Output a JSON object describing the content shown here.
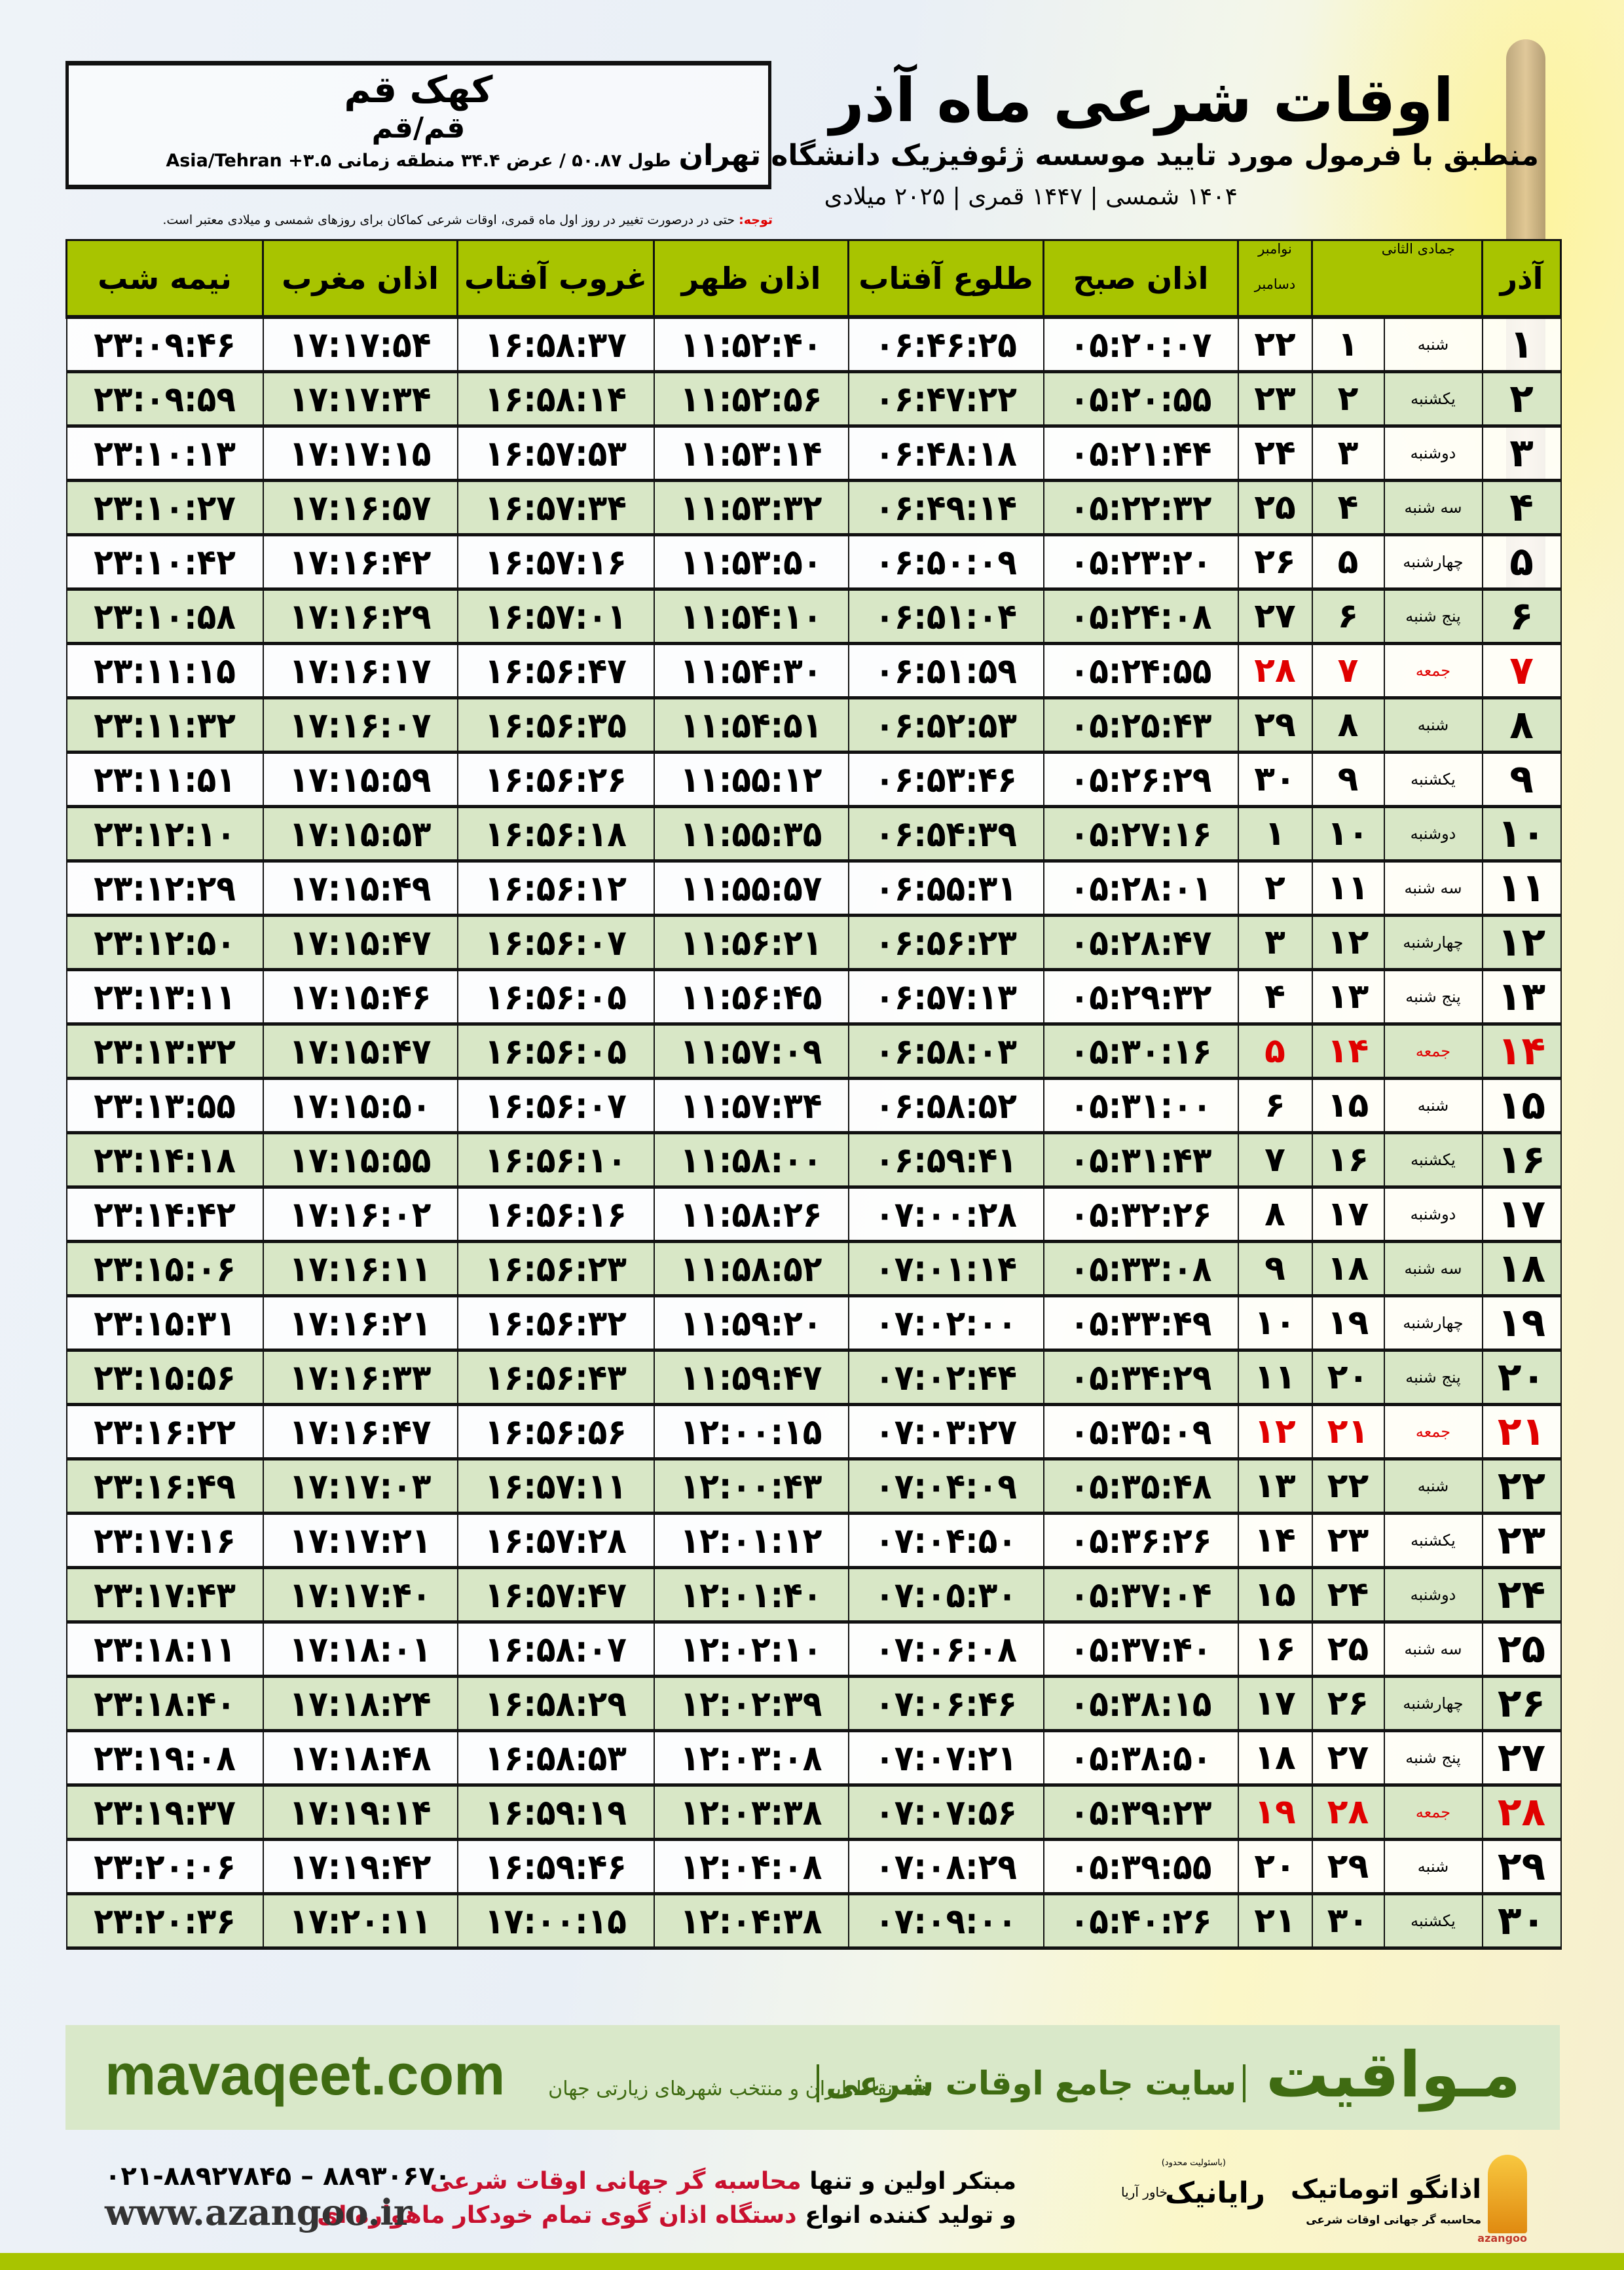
{
  "location": {
    "city": "کهک قم",
    "province": "قم/قم",
    "coords": "طول ۵۰.۸۷ / عرض ۳۴.۴ منطقه زمانی ۳.۵+ Asia/Tehran"
  },
  "header": {
    "title": "اوقات شرعی ماه آذر",
    "subtitle": "منطبق با فرمول مورد تایید موسسه ژئوفیزیک دانشگاه تهران",
    "dates": "۱۴۰۴ شمسی | ۱۴۴۷ قمری | ۲۰۲۵ میلادی"
  },
  "note": {
    "label": "توجه:",
    "text": " حتی در درصورت تغییر در روز اول ماه قمری، اوقات شرعی کماکان برای روزهای شمسی و میلادی معتبر است."
  },
  "colors": {
    "header_green": "#a8c400",
    "row_green": "#d8e7c6",
    "friday_red": "#e00000",
    "brand_green": "#3f6b12"
  },
  "table": {
    "headers": {
      "azar": "آذر",
      "jumada": "جمادی الثانی",
      "november": "نوامبر",
      "december": "دسامبر",
      "fajr": "اذان صبح",
      "sunrise": "طلوع آفتاب",
      "dhuhr": "اذان ظهر",
      "sunset": "غروب آفتاب",
      "maghrib": "اذان مغرب",
      "midnight": "نیمه شب"
    },
    "rows": [
      {
        "day": "۱",
        "weekday": "شنبه",
        "jumada": "۱",
        "greg": "۲۲",
        "fajr": "۰۵:۲۰:۰۷",
        "sunrise": "۰۶:۴۶:۲۵",
        "dhuhr": "۱۱:۵۲:۴۰",
        "sunset": "۱۶:۵۸:۳۷",
        "maghrib": "۱۷:۱۷:۵۴",
        "midnight": "۲۳:۰۹:۴۶"
      },
      {
        "day": "۲",
        "weekday": "یکشنبه",
        "jumada": "۲",
        "greg": "۲۳",
        "fajr": "۰۵:۲۰:۵۵",
        "sunrise": "۰۶:۴۷:۲۲",
        "dhuhr": "۱۱:۵۲:۵۶",
        "sunset": "۱۶:۵۸:۱۴",
        "maghrib": "۱۷:۱۷:۳۴",
        "midnight": "۲۳:۰۹:۵۹"
      },
      {
        "day": "۳",
        "weekday": "دوشنبه",
        "jumada": "۳",
        "greg": "۲۴",
        "fajr": "۰۵:۲۱:۴۴",
        "sunrise": "۰۶:۴۸:۱۸",
        "dhuhr": "۱۱:۵۳:۱۴",
        "sunset": "۱۶:۵۷:۵۳",
        "maghrib": "۱۷:۱۷:۱۵",
        "midnight": "۲۳:۱۰:۱۳"
      },
      {
        "day": "۴",
        "weekday": "سه شنبه",
        "jumada": "۴",
        "greg": "۲۵",
        "fajr": "۰۵:۲۲:۳۲",
        "sunrise": "۰۶:۴۹:۱۴",
        "dhuhr": "۱۱:۵۳:۳۲",
        "sunset": "۱۶:۵۷:۳۴",
        "maghrib": "۱۷:۱۶:۵۷",
        "midnight": "۲۳:۱۰:۲۷"
      },
      {
        "day": "۵",
        "weekday": "چهارشنبه",
        "jumada": "۵",
        "greg": "۲۶",
        "fajr": "۰۵:۲۳:۲۰",
        "sunrise": "۰۶:۵۰:۰۹",
        "dhuhr": "۱۱:۵۳:۵۰",
        "sunset": "۱۶:۵۷:۱۶",
        "maghrib": "۱۷:۱۶:۴۲",
        "midnight": "۲۳:۱۰:۴۲"
      },
      {
        "day": "۶",
        "weekday": "پنج شنبه",
        "jumada": "۶",
        "greg": "۲۷",
        "fajr": "۰۵:۲۴:۰۸",
        "sunrise": "۰۶:۵۱:۰۴",
        "dhuhr": "۱۱:۵۴:۱۰",
        "sunset": "۱۶:۵۷:۰۱",
        "maghrib": "۱۷:۱۶:۲۹",
        "midnight": "۲۳:۱۰:۵۸"
      },
      {
        "day": "۷",
        "weekday": "جمعه",
        "jumada": "۷",
        "greg": "۲۸",
        "fajr": "۰۵:۲۴:۵۵",
        "sunrise": "۰۶:۵۱:۵۹",
        "dhuhr": "۱۱:۵۴:۳۰",
        "sunset": "۱۶:۵۶:۴۷",
        "maghrib": "۱۷:۱۶:۱۷",
        "midnight": "۲۳:۱۱:۱۵"
      },
      {
        "day": "۸",
        "weekday": "شنبه",
        "jumada": "۸",
        "greg": "۲۹",
        "fajr": "۰۵:۲۵:۴۳",
        "sunrise": "۰۶:۵۲:۵۳",
        "dhuhr": "۱۱:۵۴:۵۱",
        "sunset": "۱۶:۵۶:۳۵",
        "maghrib": "۱۷:۱۶:۰۷",
        "midnight": "۲۳:۱۱:۳۲"
      },
      {
        "day": "۹",
        "weekday": "یکشنبه",
        "jumada": "۹",
        "greg": "۳۰",
        "fajr": "۰۵:۲۶:۲۹",
        "sunrise": "۰۶:۵۳:۴۶",
        "dhuhr": "۱۱:۵۵:۱۲",
        "sunset": "۱۶:۵۶:۲۶",
        "maghrib": "۱۷:۱۵:۵۹",
        "midnight": "۲۳:۱۱:۵۱"
      },
      {
        "day": "۱۰",
        "weekday": "دوشنبه",
        "jumada": "۱۰",
        "greg": "۱",
        "fajr": "۰۵:۲۷:۱۶",
        "sunrise": "۰۶:۵۴:۳۹",
        "dhuhr": "۱۱:۵۵:۳۵",
        "sunset": "۱۶:۵۶:۱۸",
        "maghrib": "۱۷:۱۵:۵۳",
        "midnight": "۲۳:۱۲:۱۰"
      },
      {
        "day": "۱۱",
        "weekday": "سه شنبه",
        "jumada": "۱۱",
        "greg": "۲",
        "fajr": "۰۵:۲۸:۰۱",
        "sunrise": "۰۶:۵۵:۳۱",
        "dhuhr": "۱۱:۵۵:۵۷",
        "sunset": "۱۶:۵۶:۱۲",
        "maghrib": "۱۷:۱۵:۴۹",
        "midnight": "۲۳:۱۲:۲۹"
      },
      {
        "day": "۱۲",
        "weekday": "چهارشنبه",
        "jumada": "۱۲",
        "greg": "۳",
        "fajr": "۰۵:۲۸:۴۷",
        "sunrise": "۰۶:۵۶:۲۳",
        "dhuhr": "۱۱:۵۶:۲۱",
        "sunset": "۱۶:۵۶:۰۷",
        "maghrib": "۱۷:۱۵:۴۷",
        "midnight": "۲۳:۱۲:۵۰"
      },
      {
        "day": "۱۳",
        "weekday": "پنج شنبه",
        "jumada": "۱۳",
        "greg": "۴",
        "fajr": "۰۵:۲۹:۳۲",
        "sunrise": "۰۶:۵۷:۱۳",
        "dhuhr": "۱۱:۵۶:۴۵",
        "sunset": "۱۶:۵۶:۰۵",
        "maghrib": "۱۷:۱۵:۴۶",
        "midnight": "۲۳:۱۳:۱۱"
      },
      {
        "day": "۱۴",
        "weekday": "جمعه",
        "jumada": "۱۴",
        "greg": "۵",
        "fajr": "۰۵:۳۰:۱۶",
        "sunrise": "۰۶:۵۸:۰۳",
        "dhuhr": "۱۱:۵۷:۰۹",
        "sunset": "۱۶:۵۶:۰۵",
        "maghrib": "۱۷:۱۵:۴۷",
        "midnight": "۲۳:۱۳:۳۲"
      },
      {
        "day": "۱۵",
        "weekday": "شنبه",
        "jumada": "۱۵",
        "greg": "۶",
        "fajr": "۰۵:۳۱:۰۰",
        "sunrise": "۰۶:۵۸:۵۲",
        "dhuhr": "۱۱:۵۷:۳۴",
        "sunset": "۱۶:۵۶:۰۷",
        "maghrib": "۱۷:۱۵:۵۰",
        "midnight": "۲۳:۱۳:۵۵"
      },
      {
        "day": "۱۶",
        "weekday": "یکشنبه",
        "jumada": "۱۶",
        "greg": "۷",
        "fajr": "۰۵:۳۱:۴۳",
        "sunrise": "۰۶:۵۹:۴۱",
        "dhuhr": "۱۱:۵۸:۰۰",
        "sunset": "۱۶:۵۶:۱۰",
        "maghrib": "۱۷:۱۵:۵۵",
        "midnight": "۲۳:۱۴:۱۸"
      },
      {
        "day": "۱۷",
        "weekday": "دوشنبه",
        "jumada": "۱۷",
        "greg": "۸",
        "fajr": "۰۵:۳۲:۲۶",
        "sunrise": "۰۷:۰۰:۲۸",
        "dhuhr": "۱۱:۵۸:۲۶",
        "sunset": "۱۶:۵۶:۱۶",
        "maghrib": "۱۷:۱۶:۰۲",
        "midnight": "۲۳:۱۴:۴۲"
      },
      {
        "day": "۱۸",
        "weekday": "سه شنبه",
        "jumada": "۱۸",
        "greg": "۹",
        "fajr": "۰۵:۳۳:۰۸",
        "sunrise": "۰۷:۰۱:۱۴",
        "dhuhr": "۱۱:۵۸:۵۲",
        "sunset": "۱۶:۵۶:۲۳",
        "maghrib": "۱۷:۱۶:۱۱",
        "midnight": "۲۳:۱۵:۰۶"
      },
      {
        "day": "۱۹",
        "weekday": "چهارشنبه",
        "jumada": "۱۹",
        "greg": "۱۰",
        "fajr": "۰۵:۳۳:۴۹",
        "sunrise": "۰۷:۰۲:۰۰",
        "dhuhr": "۱۱:۵۹:۲۰",
        "sunset": "۱۶:۵۶:۳۲",
        "maghrib": "۱۷:۱۶:۲۱",
        "midnight": "۲۳:۱۵:۳۱"
      },
      {
        "day": "۲۰",
        "weekday": "پنج شنبه",
        "jumada": "۲۰",
        "greg": "۱۱",
        "fajr": "۰۵:۳۴:۲۹",
        "sunrise": "۰۷:۰۲:۴۴",
        "dhuhr": "۱۱:۵۹:۴۷",
        "sunset": "۱۶:۵۶:۴۳",
        "maghrib": "۱۷:۱۶:۳۳",
        "midnight": "۲۳:۱۵:۵۶"
      },
      {
        "day": "۲۱",
        "weekday": "جمعه",
        "jumada": "۲۱",
        "greg": "۱۲",
        "fajr": "۰۵:۳۵:۰۹",
        "sunrise": "۰۷:۰۳:۲۷",
        "dhuhr": "۱۲:۰۰:۱۵",
        "sunset": "۱۶:۵۶:۵۶",
        "maghrib": "۱۷:۱۶:۴۷",
        "midnight": "۲۳:۱۶:۲۲"
      },
      {
        "day": "۲۲",
        "weekday": "شنبه",
        "jumada": "۲۲",
        "greg": "۱۳",
        "fajr": "۰۵:۳۵:۴۸",
        "sunrise": "۰۷:۰۴:۰۹",
        "dhuhr": "۱۲:۰۰:۴۳",
        "sunset": "۱۶:۵۷:۱۱",
        "maghrib": "۱۷:۱۷:۰۳",
        "midnight": "۲۳:۱۶:۴۹"
      },
      {
        "day": "۲۳",
        "weekday": "یکشنبه",
        "jumada": "۲۳",
        "greg": "۱۴",
        "fajr": "۰۵:۳۶:۲۶",
        "sunrise": "۰۷:۰۴:۵۰",
        "dhuhr": "۱۲:۰۱:۱۲",
        "sunset": "۱۶:۵۷:۲۸",
        "maghrib": "۱۷:۱۷:۲۱",
        "midnight": "۲۳:۱۷:۱۶"
      },
      {
        "day": "۲۴",
        "weekday": "دوشنبه",
        "jumada": "۲۴",
        "greg": "۱۵",
        "fajr": "۰۵:۳۷:۰۴",
        "sunrise": "۰۷:۰۵:۳۰",
        "dhuhr": "۱۲:۰۱:۴۰",
        "sunset": "۱۶:۵۷:۴۷",
        "maghrib": "۱۷:۱۷:۴۰",
        "midnight": "۲۳:۱۷:۴۳"
      },
      {
        "day": "۲۵",
        "weekday": "سه شنبه",
        "jumada": "۲۵",
        "greg": "۱۶",
        "fajr": "۰۵:۳۷:۴۰",
        "sunrise": "۰۷:۰۶:۰۸",
        "dhuhr": "۱۲:۰۲:۱۰",
        "sunset": "۱۶:۵۸:۰۷",
        "maghrib": "۱۷:۱۸:۰۱",
        "midnight": "۲۳:۱۸:۱۱"
      },
      {
        "day": "۲۶",
        "weekday": "چهارشنبه",
        "jumada": "۲۶",
        "greg": "۱۷",
        "fajr": "۰۵:۳۸:۱۵",
        "sunrise": "۰۷:۰۶:۴۶",
        "dhuhr": "۱۲:۰۲:۳۹",
        "sunset": "۱۶:۵۸:۲۹",
        "maghrib": "۱۷:۱۸:۲۴",
        "midnight": "۲۳:۱۸:۴۰"
      },
      {
        "day": "۲۷",
        "weekday": "پنج شنبه",
        "jumada": "۲۷",
        "greg": "۱۸",
        "fajr": "۰۵:۳۸:۵۰",
        "sunrise": "۰۷:۰۷:۲۱",
        "dhuhr": "۱۲:۰۳:۰۸",
        "sunset": "۱۶:۵۸:۵۳",
        "maghrib": "۱۷:۱۸:۴۸",
        "midnight": "۲۳:۱۹:۰۸"
      },
      {
        "day": "۲۸",
        "weekday": "جمعه",
        "jumada": "۲۸",
        "greg": "۱۹",
        "fajr": "۰۵:۳۹:۲۳",
        "sunrise": "۰۷:۰۷:۵۶",
        "dhuhr": "۱۲:۰۳:۳۸",
        "sunset": "۱۶:۵۹:۱۹",
        "maghrib": "۱۷:۱۹:۱۴",
        "midnight": "۲۳:۱۹:۳۷"
      },
      {
        "day": "۲۹",
        "weekday": "شنبه",
        "jumada": "۲۹",
        "greg": "۲۰",
        "fajr": "۰۵:۳۹:۵۵",
        "sunrise": "۰۷:۰۸:۲۹",
        "dhuhr": "۱۲:۰۴:۰۸",
        "sunset": "۱۶:۵۹:۴۶",
        "maghrib": "۱۷:۱۹:۴۲",
        "midnight": "۲۳:۲۰:۰۶"
      },
      {
        "day": "۳۰",
        "weekday": "یکشنبه",
        "jumada": "۳۰",
        "greg": "۲۱",
        "fajr": "۰۵:۴۰:۲۶",
        "sunrise": "۰۷:۰۹:۰۰",
        "dhuhr": "۱۲:۰۴:۳۸",
        "sunset": "۱۷:۰۰:۱۵",
        "maghrib": "۱۷:۲۰:۱۱",
        "midnight": "۲۳:۲۰:۳۶"
      }
    ]
  },
  "footer": {
    "brand": "مـواقیت",
    "site_title": "سایت جامع اوقات شرعی",
    "tagline": "همه نقاط ایران و منتخب شهرهای زیارتی جهان",
    "url": "mavaqeet.com",
    "azangoo_name": "اذانگو اتوماتیک",
    "azangoo_en": "azangoo",
    "azangoo_sub": "محاسبه گر جهانی اوقات شرعی",
    "rayanik_ltd": "(باسئولیت محدود)",
    "rayanik_name": "رایانیک",
    "rayanik_sub": "خاور آریا",
    "promo_line1_a": "مبتکر اولین و تنها ",
    "promo_line1_b": "محاسبه گر جهانی اوقات شرعی",
    "promo_line2_a": "و تولید کننده انواع ",
    "promo_line2_b": "دستگاه اذان گوی تمام خودکار ماهواره ای",
    "phone": "۰۲۱-۸۸۹۲۷۸۴۵ – ۸۸۹۳۰۶۷۰",
    "website": "www.azangoo.ir"
  }
}
